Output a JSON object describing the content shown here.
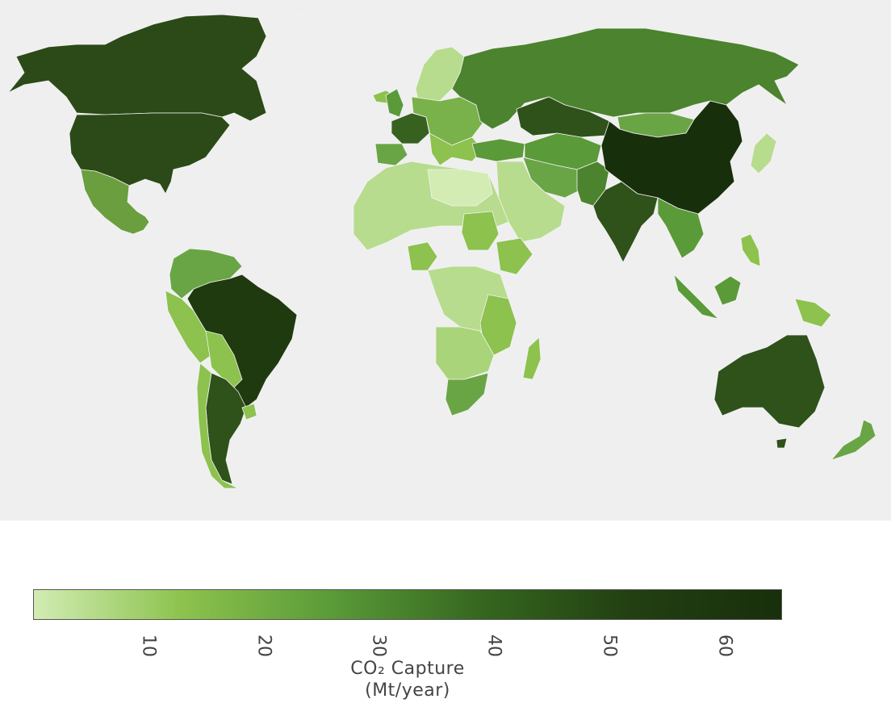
{
  "legend": {
    "title_line1": "CO₂ Capture",
    "title_line2": "(Mt/year)",
    "scale_min": 0,
    "scale_max": 65,
    "ticks": [
      {
        "value": 10,
        "label": "10"
      },
      {
        "value": 20,
        "label": "20"
      },
      {
        "value": 30,
        "label": "30"
      },
      {
        "value": 40,
        "label": "40"
      },
      {
        "value": 50,
        "label": "50"
      },
      {
        "value": 60,
        "label": "60"
      }
    ],
    "gradient_colors": [
      "#d2ecb3",
      "#8cc24d",
      "#5a9a38",
      "#35661f",
      "#223f12",
      "#182f0b"
    ]
  },
  "map": {
    "ocean_color": "#efefef",
    "no_data_color": "#efefef"
  }
}
